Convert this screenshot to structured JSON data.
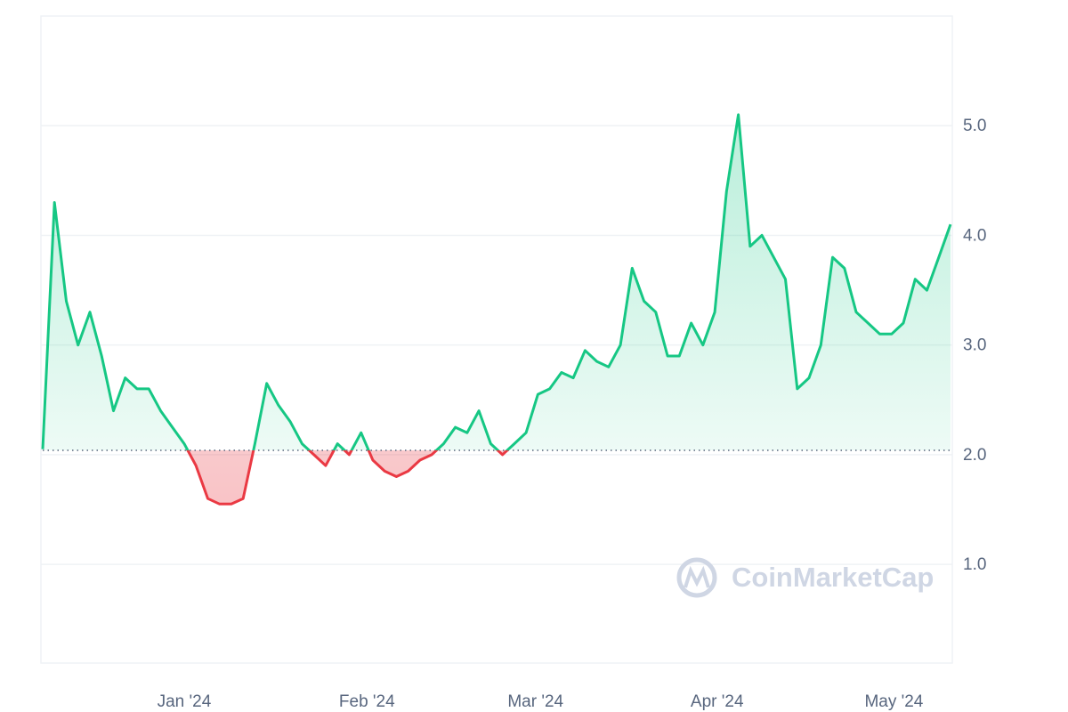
{
  "chart_data": {
    "type": "line",
    "values": [
      2.05,
      4.3,
      3.4,
      3.0,
      3.3,
      2.9,
      2.4,
      2.7,
      2.6,
      2.6,
      2.4,
      2.25,
      2.1,
      1.9,
      1.6,
      1.55,
      1.55,
      1.6,
      2.1,
      2.65,
      2.45,
      2.3,
      2.1,
      2.0,
      1.9,
      2.1,
      2.0,
      2.2,
      1.95,
      1.85,
      1.8,
      1.85,
      1.95,
      2.0,
      2.1,
      2.25,
      2.2,
      2.4,
      2.1,
      2.0,
      2.1,
      2.2,
      2.55,
      2.6,
      2.75,
      2.7,
      2.95,
      2.85,
      2.8,
      3.0,
      3.7,
      3.4,
      3.3,
      2.9,
      2.9,
      3.2,
      3.0,
      3.3,
      4.4,
      5.1,
      3.9,
      4.0,
      3.8,
      3.6,
      2.6,
      2.7,
      3.0,
      3.8,
      3.7,
      3.3,
      3.2,
      3.1,
      3.1,
      3.2,
      3.6,
      3.5,
      3.8,
      4.1
    ],
    "baseline": 2.04,
    "up_color": "#16c784",
    "down_color": "#ea3943",
    "xlim": [
      0,
      77
    ],
    "xticks": [
      {
        "value": 12,
        "label": "Jan '24"
      },
      {
        "value": 27.5,
        "label": "Feb '24"
      },
      {
        "value": 41.8,
        "label": "Mar '24"
      },
      {
        "value": 57.2,
        "label": "Apr '24"
      },
      {
        "value": 72.2,
        "label": "May '24"
      }
    ],
    "ylim": [
      0.1,
      6.0
    ],
    "yticks": [
      {
        "value": 1,
        "label": "1.0"
      },
      {
        "value": 2,
        "label": "2.0"
      },
      {
        "value": 3,
        "label": "3.0"
      },
      {
        "value": 4,
        "label": "4.0"
      },
      {
        "value": 5,
        "label": "5.0"
      }
    ],
    "grid": true,
    "watermark": "CoinMarketCap"
  }
}
